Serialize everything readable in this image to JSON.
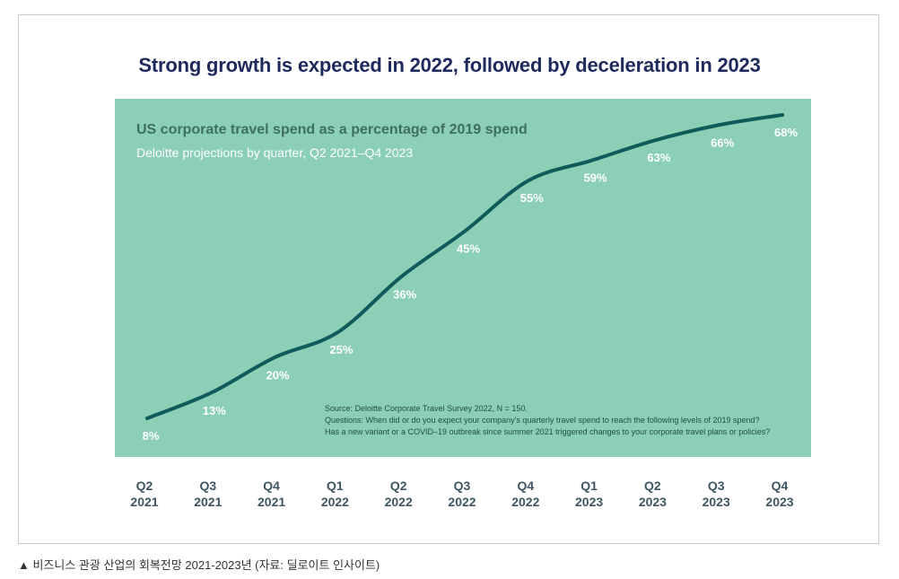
{
  "title": "Strong growth is expected in 2022, followed by deceleration in 2023",
  "caption": "▲ 비즈니스 관광 산업의 회복전망 2021-2023년 (자료: 딜로이트 인사이트)",
  "colors": {
    "panel": "#8bcfb6",
    "line": "#0f5a5a",
    "title": "#1f2a5c",
    "labels": "#ffffff"
  },
  "chart_data": {
    "type": "line",
    "title": "US corporate travel spend as a percentage of 2019 spend",
    "subtitle": "Deloitte projections by quarter, Q2 2021–Q4 2023",
    "categories": [
      [
        "Q2",
        "2021"
      ],
      [
        "Q3",
        "2021"
      ],
      [
        "Q4",
        "2021"
      ],
      [
        "Q1",
        "2022"
      ],
      [
        "Q2",
        "2022"
      ],
      [
        "Q3",
        "2022"
      ],
      [
        "Q4",
        "2022"
      ],
      [
        "Q1",
        "2023"
      ],
      [
        "Q2",
        "2023"
      ],
      [
        "Q3",
        "2023"
      ],
      [
        "Q4",
        "2023"
      ]
    ],
    "values": [
      8,
      13,
      20,
      25,
      36,
      45,
      55,
      59,
      63,
      66,
      68
    ],
    "value_labels": [
      "8%",
      "13%",
      "20%",
      "25%",
      "36%",
      "45%",
      "55%",
      "59%",
      "63%",
      "66%",
      "68%"
    ],
    "ylim": [
      8,
      68
    ],
    "grid": false,
    "source": [
      "Source: Deloitte Corporate Travel Survey 2022, N = 150.",
      "Questions: When did or do you expect your company's quarterly travel spend to reach the following levels of 2019 spend?",
      "Has a new variant or a COVID–19 outbreak since summer 2021 triggered changes to your corporate travel plans or policies?"
    ]
  }
}
